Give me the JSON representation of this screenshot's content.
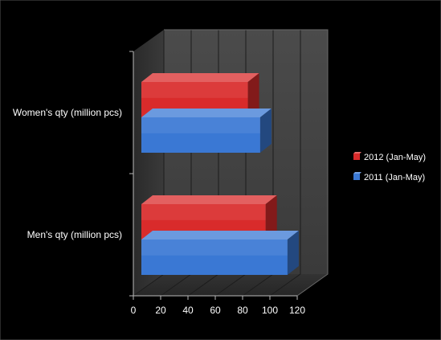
{
  "chart_data": {
    "type": "bar",
    "orientation": "horizontal",
    "style": "3d",
    "categories": [
      "Women's qty (million pcs)",
      "Men's qty (million pcs)"
    ],
    "series": [
      {
        "name": "2012 (Jan-May)",
        "values": [
          78,
          91
        ],
        "color": "#d92b2b"
      },
      {
        "name": "2011 (Jan-May)",
        "values": [
          87,
          107
        ],
        "color": "#3a78d4"
      }
    ],
    "xlim": [
      0,
      120
    ],
    "x_ticks": [
      "0",
      "20",
      "40",
      "60",
      "80",
      "100",
      "120"
    ],
    "grid": true,
    "legend_position": "right",
    "background": "#000000",
    "wall_color": "#454545"
  }
}
